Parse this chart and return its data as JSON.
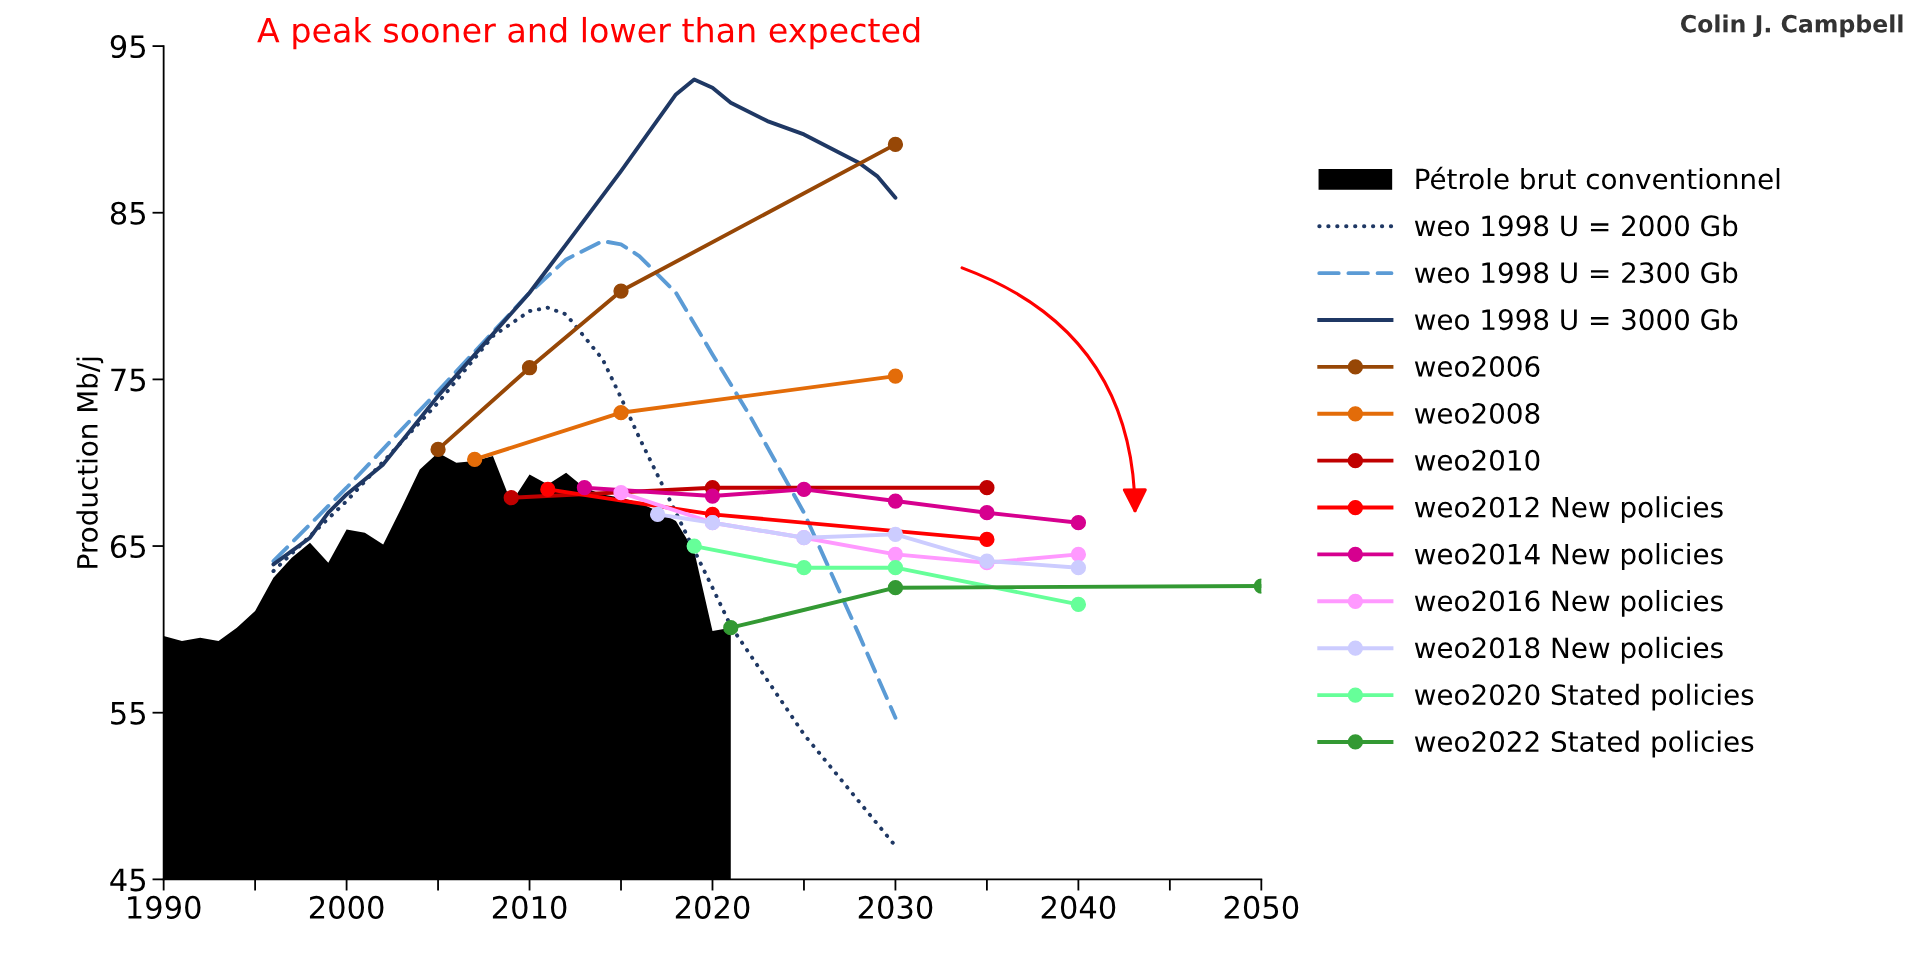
{
  "chart_data": {
    "type": "line",
    "ylabel": "Production Mb/j",
    "annotations": [
      "A peak sooner and lower than expected",
      "Colin J. Campbell"
    ],
    "xlim": [
      1990,
      2050
    ],
    "xticks": [
      1990,
      {
        "value": 1995,
        "label": null
      },
      2000,
      {
        "value": 2005,
        "label": null
      },
      2010,
      {
        "value": 2015,
        "label": null
      },
      2020,
      {
        "value": 2025,
        "label": null
      },
      2030,
      {
        "value": 2035,
        "label": null
      },
      2040,
      {
        "value": 2045,
        "label": null
      },
      2050
    ],
    "ylim": [
      45,
      95
    ],
    "yticks": [
      45,
      55,
      65,
      75,
      85,
      95
    ],
    "grid": false,
    "legend": "right",
    "series": [
      {
        "name": "Pétrole brut conventionnel",
        "type": "area",
        "color": "#000000",
        "x": [
          1990,
          1991,
          1992,
          1993,
          1994,
          1995,
          1996,
          1997,
          1998,
          1999,
          2000,
          2001,
          2002,
          2003,
          2004,
          2005,
          2006,
          2007,
          2008,
          2009,
          2010,
          2011,
          2012,
          2013,
          2014,
          2015,
          2016,
          2017,
          2018,
          2019,
          2020,
          2021
        ],
        "values": [
          59.6,
          59.3,
          59.5,
          59.3,
          60.1,
          61.1,
          63.1,
          64.3,
          65.2,
          64.0,
          66.0,
          65.8,
          65.1,
          67.3,
          69.6,
          70.6,
          70.0,
          70.1,
          70.4,
          67.6,
          69.3,
          68.7,
          69.4,
          68.5,
          68.1,
          67.9,
          67.6,
          67.1,
          66.5,
          64.7,
          59.9,
          60.1
        ]
      },
      {
        "name": "weo 1998 U = 2000 Gb",
        "color": "#1f3864",
        "line_style": "dotted",
        "marker": "none",
        "x": [
          1996,
          2000,
          2005,
          2008,
          2010,
          2011,
          2012,
          2014,
          2015,
          2016,
          2018,
          2020,
          2021,
          2025,
          2030
        ],
        "values": [
          63.5,
          67.7,
          73.6,
          77.6,
          79.1,
          79.3,
          78.9,
          76.2,
          73.9,
          71.5,
          67.0,
          62.5,
          60.2,
          53.7,
          47.0
        ]
      },
      {
        "name": "weo 1998 U = 2300 Gb",
        "color": "#5b9bd5",
        "line_style": "dashed",
        "marker": "none",
        "x": [
          1996,
          2000,
          2005,
          2010,
          2012,
          2014,
          2015,
          2016,
          2018,
          2020,
          2022,
          2025,
          2028,
          2030
        ],
        "values": [
          64.1,
          68.5,
          74.3,
          80.2,
          82.2,
          83.3,
          83.1,
          82.4,
          80.2,
          76.5,
          72.9,
          67.0,
          59.7,
          54.7
        ]
      },
      {
        "name": "weo 1998 U = 3000 Gb",
        "color": "#1f3864",
        "line_style": "solid",
        "marker": "none",
        "x": [
          1996,
          1998,
          1999,
          2000,
          2002,
          2005,
          2010,
          2012,
          2015,
          2018,
          2019,
          2020,
          2021,
          2023,
          2025,
          2028,
          2029,
          2030
        ],
        "values": [
          63.9,
          65.5,
          67.0,
          68.1,
          69.9,
          74.0,
          80.2,
          83.1,
          87.5,
          92.1,
          93.0,
          92.5,
          91.6,
          90.5,
          89.7,
          88.0,
          87.2,
          85.9
        ]
      },
      {
        "name": "weo2006",
        "color": "#974706",
        "line_style": "solid",
        "marker": "circle",
        "x": [
          2005,
          2010,
          2015,
          2030
        ],
        "values": [
          70.8,
          75.7,
          80.3,
          89.1
        ]
      },
      {
        "name": "weo2008",
        "color": "#e36c09",
        "line_style": "solid",
        "marker": "circle",
        "x": [
          2007,
          2015,
          2030
        ],
        "values": [
          70.2,
          73.0,
          75.2
        ]
      },
      {
        "name": "weo2010",
        "color": "#c00000",
        "line_style": "solid",
        "marker": "circle",
        "x": [
          2009,
          2020,
          2035
        ],
        "values": [
          67.9,
          68.5,
          68.5
        ]
      },
      {
        "name": "weo2012 New policies",
        "color": "#ff0000",
        "line_style": "solid",
        "marker": "circle",
        "x": [
          2011,
          2020,
          2035
        ],
        "values": [
          68.4,
          66.9,
          65.4
        ]
      },
      {
        "name": "weo2014 New policies",
        "color": "#d6008f",
        "line_style": "solid",
        "marker": "circle",
        "x": [
          2013,
          2020,
          2025,
          2030,
          2035,
          2040
        ],
        "values": [
          68.5,
          68.0,
          68.4,
          67.7,
          67.0,
          66.4
        ]
      },
      {
        "name": "weo2016 New policies",
        "color": "#ff99ff",
        "line_style": "solid",
        "marker": "circle",
        "x": [
          2015,
          2020,
          2025,
          2030,
          2035,
          2040
        ],
        "values": [
          68.2,
          66.4,
          65.5,
          64.5,
          64.0,
          64.5
        ]
      },
      {
        "name": "weo2018 New policies",
        "color": "#ccccff",
        "line_style": "solid",
        "marker": "circle",
        "x": [
          2017,
          2020,
          2025,
          2030,
          2035,
          2040
        ],
        "values": [
          66.9,
          66.4,
          65.5,
          65.7,
          64.1,
          63.7
        ]
      },
      {
        "name": "weo2020 Stated policies",
        "color": "#66ff99",
        "line_style": "solid",
        "marker": "circle",
        "x": [
          2019,
          2025,
          2030,
          2040
        ],
        "values": [
          65.0,
          63.7,
          63.7,
          61.5
        ]
      },
      {
        "name": "weo2022 Stated policies",
        "color": "#339933",
        "line_style": "solid",
        "marker": "circle",
        "x": [
          2021,
          2030,
          2050
        ],
        "values": [
          60.1,
          62.5,
          62.6
        ]
      }
    ]
  }
}
